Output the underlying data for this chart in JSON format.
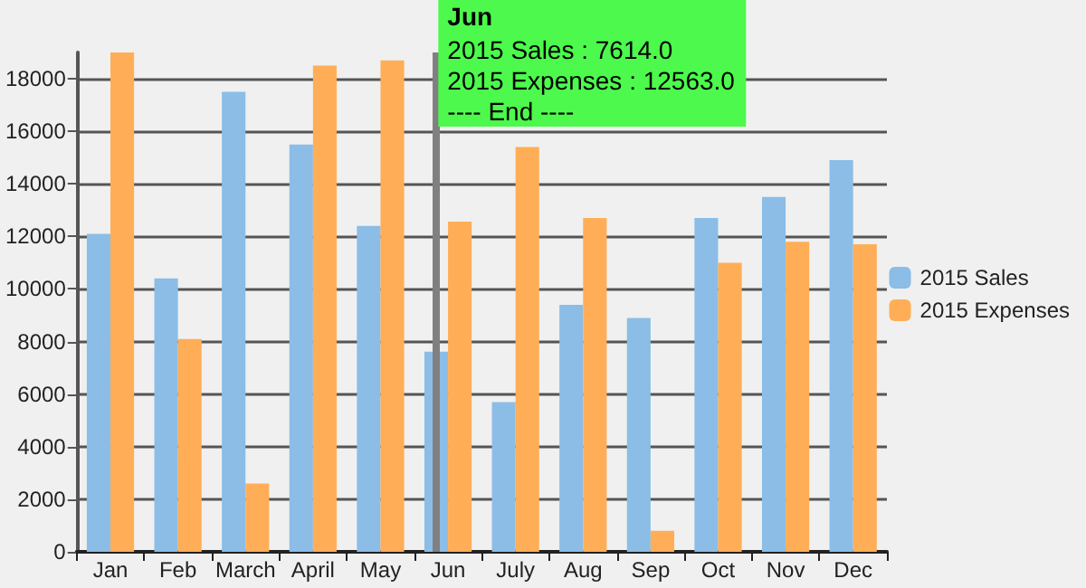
{
  "chart_data": {
    "type": "bar",
    "categories": [
      "Jan",
      "Feb",
      "March",
      "April",
      "May",
      "Jun",
      "July",
      "Aug",
      "Sep",
      "Oct",
      "Nov",
      "Dec"
    ],
    "series": [
      {
        "name": "2015 Sales",
        "color": "#8bbde6",
        "values": [
          12100,
          10400,
          17500,
          15500,
          12400,
          7614,
          5700,
          9400,
          8900,
          12700,
          13500,
          14900
        ]
      },
      {
        "name": "2015 Expenses",
        "color": "#ffae57",
        "values": [
          19000,
          8100,
          2600,
          18500,
          18700,
          12563,
          15400,
          12700,
          800,
          11000,
          11800,
          11700
        ]
      }
    ],
    "ylim": [
      0,
      19000
    ],
    "yticks": [
      0,
      2000,
      4000,
      6000,
      8000,
      10000,
      12000,
      14000,
      16000,
      18000
    ],
    "grid": "y",
    "legend": "right",
    "ref_lines": [
      {
        "axis": "x",
        "value": "Jun",
        "color": "#808080"
      }
    ],
    "annotations": [
      {
        "text": "Jun\n2015 Sales : 7614.0\n2015 Expenses : 12563.0\n---- End ----",
        "x": "Jun"
      }
    ]
  }
}
